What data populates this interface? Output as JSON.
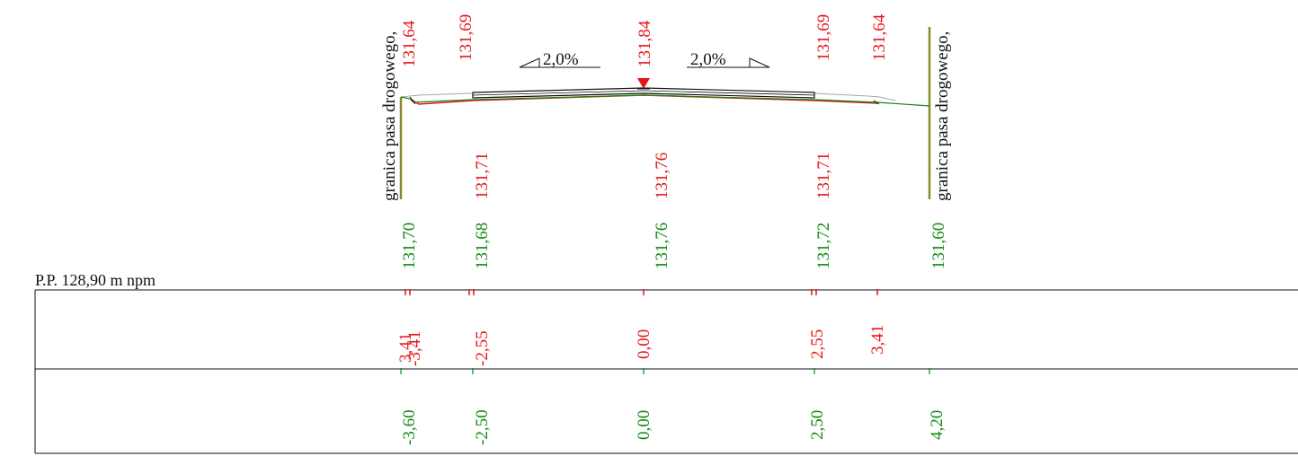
{
  "colors": {
    "design": "#e8141b",
    "terrain": "#138a13",
    "outline": "#111111",
    "boundary": "#8a8a2a",
    "grey": "#a8a8a8"
  },
  "top_labels": {
    "design_elevations": [
      "131,64",
      "131,69",
      "131,84",
      "131,69",
      "131,64"
    ],
    "left_boundary": "granica pasa drogowego,",
    "right_boundary": "granica pasa drogowego,",
    "slopes": [
      "2,0%",
      "2,0%"
    ]
  },
  "lower_labels": {
    "red_elevations": [
      "131,71",
      "131,76",
      "131,71"
    ],
    "green_elevations": [
      "131,70",
      "131,68",
      "131,76",
      "131,72",
      "131,60"
    ]
  },
  "reference_plane": "P.P. 128,90 m npm",
  "table": {
    "row1_offsets": [
      "-3,41",
      "-2,55",
      "0,00",
      "2,55",
      "3,41"
    ],
    "row1_overlap_fragment": "3,41",
    "row2_offsets": [
      "-3,60",
      "-2,50",
      "0,00",
      "2,50",
      "4,20"
    ]
  }
}
